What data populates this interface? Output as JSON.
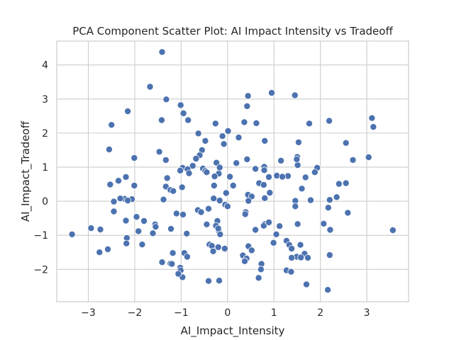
{
  "chart_data": {
    "type": "scatter",
    "title": "PCA Component Scatter Plot: AI Impact Intensity vs Tradeoff",
    "xlabel": "AI_Impact_Intensity",
    "ylabel": "AI_Impact_Tradeoff",
    "xlim": [
      -3.68,
      3.9
    ],
    "ylim": [
      -2.95,
      4.7
    ],
    "xticks": [
      -3,
      -2,
      -1,
      0,
      1,
      2,
      3
    ],
    "yticks": [
      -2,
      -1,
      0,
      1,
      2,
      3,
      4
    ],
    "xtick_labels": [
      "−3",
      "−2",
      "−1",
      "0",
      "1",
      "2",
      "3"
    ],
    "ytick_labels": [
      "−2",
      "−1",
      "0",
      "1",
      "2",
      "3",
      "4"
    ],
    "grid": true,
    "marker_color": "#4c72b0",
    "points": [
      [
        -1.41,
        4.38
      ],
      [
        -1.67,
        3.36
      ],
      [
        -1.32,
        2.99
      ],
      [
        -1.01,
        2.82
      ],
      [
        0.44,
        3.09
      ],
      [
        0.95,
        3.18
      ],
      [
        1.45,
        3.11
      ],
      [
        0.42,
        2.79
      ],
      [
        -2.15,
        2.64
      ],
      [
        -0.95,
        2.58
      ],
      [
        -0.85,
        2.38
      ],
      [
        -1.42,
        2.38
      ],
      [
        -0.26,
        2.28
      ],
      [
        0.36,
        2.32
      ],
      [
        -2.5,
        2.24
      ],
      [
        0.62,
        2.29
      ],
      [
        1.76,
        2.28
      ],
      [
        2.19,
        2.36
      ],
      [
        3.11,
        2.44
      ],
      [
        3.14,
        2.18
      ],
      [
        -0.63,
        1.99
      ],
      [
        0.01,
        2.06
      ],
      [
        -0.11,
        1.91
      ],
      [
        0.24,
        1.87
      ],
      [
        -0.48,
        1.77
      ],
      [
        1.53,
        1.73
      ],
      [
        -0.08,
        1.68
      ],
      [
        0.8,
        1.77
      ],
      [
        2.55,
        1.71
      ],
      [
        -1.47,
        1.45
      ],
      [
        -0.55,
        1.5
      ],
      [
        -2.55,
        1.52
      ],
      [
        -2.01,
        1.27
      ],
      [
        -1.33,
        1.21
      ],
      [
        -0.6,
        1.35
      ],
      [
        -0.68,
        1.25
      ],
      [
        0.42,
        1.23
      ],
      [
        1.5,
        1.3
      ],
      [
        1.51,
        1.06
      ],
      [
        1.49,
        1.23
      ],
      [
        1.15,
        1.19
      ],
      [
        2.7,
        1.21
      ],
      [
        3.04,
        1.29
      ],
      [
        -0.75,
        1.04
      ],
      [
        -0.24,
        1.13
      ],
      [
        0.19,
        1.12
      ],
      [
        0.79,
        1.01
      ],
      [
        0.6,
        0.95
      ],
      [
        1.93,
        0.98
      ],
      [
        -0.97,
        0.98
      ],
      [
        -1.02,
        0.9
      ],
      [
        -0.86,
        0.94
      ],
      [
        -0.53,
        0.96
      ],
      [
        -0.48,
        0.89
      ],
      [
        -0.45,
        0.85
      ],
      [
        -0.19,
        0.81
      ],
      [
        -0.17,
        0.99
      ],
      [
        0.79,
        0.91
      ],
      [
        1.88,
        0.85
      ],
      [
        -0.83,
        0.82
      ],
      [
        -2.19,
        0.71
      ],
      [
        -2.35,
        0.6
      ],
      [
        -1.3,
        0.68
      ],
      [
        -0.28,
        0.73
      ],
      [
        0.05,
        0.72
      ],
      [
        0.89,
        0.71
      ],
      [
        1.06,
        0.75
      ],
      [
        1.19,
        0.71
      ],
      [
        1.3,
        0.74
      ],
      [
        1.68,
        0.7
      ],
      [
        1.18,
        0.72
      ],
      [
        0.68,
        0.53
      ],
      [
        -2.53,
        0.49
      ],
      [
        -2.01,
        0.46
      ],
      [
        -1.33,
        0.43
      ],
      [
        -0.98,
        0.41
      ],
      [
        -0.29,
        0.46
      ],
      [
        0.12,
        0.46
      ],
      [
        0.78,
        0.48
      ],
      [
        1.6,
        0.37
      ],
      [
        2.4,
        0.51
      ],
      [
        2.55,
        0.53
      ],
      [
        -1.23,
        0.33
      ],
      [
        -1.17,
        0.3
      ],
      [
        -0.03,
        0.24
      ],
      [
        0.44,
        0.19
      ],
      [
        0.52,
        0.14
      ],
      [
        0.91,
        0.25
      ],
      [
        2.35,
        0.12
      ],
      [
        2.2,
        0.04
      ],
      [
        1.79,
        0.03
      ],
      [
        1.46,
        0.01
      ],
      [
        0.8,
        0.09
      ],
      [
        -2.22,
        0.07
      ],
      [
        -2.06,
        0.06
      ],
      [
        -2.15,
        0.02
      ],
      [
        -2.31,
        0.08
      ],
      [
        -0.3,
        0.08
      ],
      [
        -0.17,
        0.02
      ],
      [
        0.45,
        0.01
      ],
      [
        -1.38,
        0.05
      ],
      [
        -2.45,
        -0.01
      ],
      [
        -0.05,
        -0.1
      ],
      [
        0.0,
        -0.15
      ],
      [
        1.46,
        -0.15
      ],
      [
        2.17,
        -0.19
      ],
      [
        -2.45,
        -0.3
      ],
      [
        -0.64,
        -0.26
      ],
      [
        -0.41,
        -0.22
      ],
      [
        -0.57,
        -0.32
      ],
      [
        -1.1,
        -0.36
      ],
      [
        -0.96,
        -0.39
      ],
      [
        0.39,
        -0.32
      ],
      [
        0.38,
        -0.38
      ],
      [
        2.59,
        -0.34
      ],
      [
        -1.96,
        -0.46
      ],
      [
        -1.8,
        -0.58
      ],
      [
        -2.19,
        -0.57
      ],
      [
        -1.56,
        -0.68
      ],
      [
        -1.55,
        -0.75
      ],
      [
        -0.45,
        -0.68
      ],
      [
        -0.22,
        -0.58
      ],
      [
        -0.25,
        -0.72
      ],
      [
        0.8,
        -0.67
      ],
      [
        0.78,
        -0.72
      ],
      [
        0.89,
        -0.62
      ],
      [
        1.12,
        -0.73
      ],
      [
        1.51,
        -0.67
      ],
      [
        2.07,
        -0.66
      ],
      [
        2.21,
        -0.84
      ],
      [
        3.56,
        -0.85
      ],
      [
        -3.35,
        -0.97
      ],
      [
        -2.94,
        -0.79
      ],
      [
        -2.74,
        -0.83
      ],
      [
        -1.92,
        -0.88
      ],
      [
        -1.61,
        -0.94
      ],
      [
        -1.22,
        -0.81
      ],
      [
        -0.88,
        -0.95
      ],
      [
        -0.19,
        -0.87
      ],
      [
        -0.16,
        -0.97
      ],
      [
        -0.2,
        -0.8
      ],
      [
        0.6,
        -0.84
      ],
      [
        1.05,
        -0.97
      ],
      [
        -2.17,
        -1.08
      ],
      [
        -2.18,
        -1.24
      ],
      [
        -1.84,
        -1.27
      ],
      [
        -0.39,
        -1.27
      ],
      [
        -0.34,
        -1.31
      ],
      [
        -0.31,
        -1.47
      ],
      [
        -0.2,
        -1.35
      ],
      [
        -0.06,
        -1.39
      ],
      [
        0.45,
        -1.32
      ],
      [
        0.52,
        -1.44
      ],
      [
        0.99,
        -1.22
      ],
      [
        1.27,
        -1.16
      ],
      [
        1.33,
        -1.28
      ],
      [
        1.38,
        -1.39
      ],
      [
        1.57,
        -1.28
      ],
      [
        1.66,
        -1.54
      ],
      [
        1.73,
        -1.66
      ],
      [
        2.2,
        -1.58
      ],
      [
        -2.58,
        -1.41
      ],
      [
        -2.76,
        -1.5
      ],
      [
        -1.18,
        -1.52
      ],
      [
        -0.93,
        -1.52
      ],
      [
        0.33,
        -1.59
      ],
      [
        0.41,
        -1.68
      ],
      [
        1.49,
        -1.63
      ],
      [
        1.58,
        -1.65
      ],
      [
        1.38,
        -1.66
      ],
      [
        0.37,
        -1.76
      ],
      [
        -1.23,
        -1.83
      ],
      [
        -1.2,
        -1.84
      ],
      [
        -0.87,
        -1.63
      ],
      [
        0.73,
        -1.84
      ],
      [
        -1.41,
        -1.79
      ],
      [
        -1.02,
        -1.95
      ],
      [
        -1.01,
        -2.03
      ],
      [
        0.72,
        -2.0
      ],
      [
        1.27,
        -2.03
      ],
      [
        1.37,
        -2.07
      ],
      [
        -0.97,
        -2.23
      ],
      [
        -1.06,
        -2.13
      ],
      [
        -0.41,
        -2.34
      ],
      [
        -0.18,
        -2.33
      ],
      [
        0.67,
        -2.25
      ],
      [
        1.7,
        -2.44
      ],
      [
        2.16,
        -2.6
      ]
    ]
  }
}
